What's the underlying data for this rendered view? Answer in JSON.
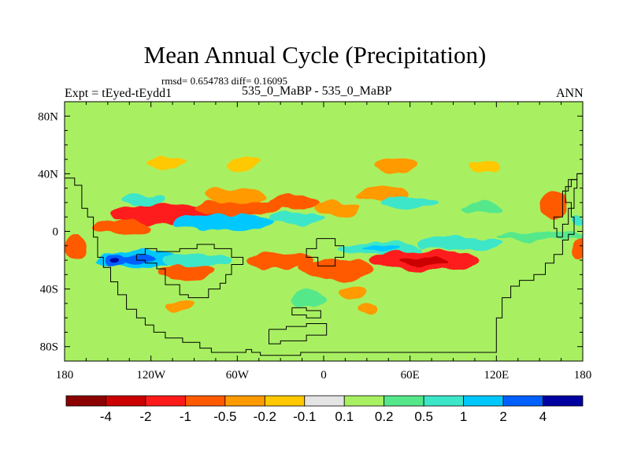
{
  "chart_data": {
    "type": "heatmap",
    "title": "Mean Annual Cycle (Precipitation)",
    "subtitle": "rmsd= 0.654783 diff= 0.16095",
    "left_label": "Expt = tEyed-tEydd1",
    "center_label": "535_0_MaBP - 535_0_MaBP",
    "right_label": "ANN",
    "x_range": [
      -180,
      180
    ],
    "y_range": [
      -90,
      90
    ],
    "x_ticks": [
      {
        "value": -180,
        "label": "180"
      },
      {
        "value": -120,
        "label": "120W"
      },
      {
        "value": -60,
        "label": "60W"
      },
      {
        "value": 0,
        "label": "0"
      },
      {
        "value": 60,
        "label": "60E"
      },
      {
        "value": 120,
        "label": "120E"
      },
      {
        "value": 180,
        "label": "180"
      }
    ],
    "y_ticks": [
      {
        "value": 80,
        "label": "80N"
      },
      {
        "value": 40,
        "label": "40N"
      },
      {
        "value": 0,
        "label": "0"
      },
      {
        "value": -40,
        "label": "40S"
      },
      {
        "value": -80,
        "label": "80S"
      }
    ],
    "colorbar": {
      "colors": [
        "#8b0000",
        "#cc0000",
        "#ff1a1a",
        "#ff5a00",
        "#ff9a00",
        "#ffc800",
        "#e4e4e4",
        "#a8f062",
        "#55e88a",
        "#3ce6c8",
        "#00c8ff",
        "#0060ff",
        "#0000a0"
      ],
      "labels": [
        "-4",
        "-2",
        "-1",
        "-0.5",
        "-0.2",
        "-0.1",
        "0.1",
        "0.2",
        "0.5",
        "1",
        "2",
        "4"
      ]
    },
    "field_features": [
      {
        "lon": -110,
        "lat": 12,
        "rx": 38,
        "ry": 7,
        "value": -1.2
      },
      {
        "lon": -140,
        "lat": 3,
        "rx": 20,
        "ry": 5,
        "value": -0.8
      },
      {
        "lon": -60,
        "lat": 16,
        "rx": 30,
        "ry": 6,
        "value": -0.6
      },
      {
        "lon": -20,
        "lat": 20,
        "rx": 18,
        "ry": 5,
        "value": -0.5
      },
      {
        "lon": 10,
        "lat": 16,
        "rx": 16,
        "ry": 5,
        "value": -0.3
      },
      {
        "lon": 40,
        "lat": 26,
        "rx": 18,
        "ry": 5,
        "value": -0.25
      },
      {
        "lon": -60,
        "lat": 25,
        "rx": 22,
        "ry": 6,
        "value": -0.2
      },
      {
        "lon": -110,
        "lat": 48,
        "rx": 14,
        "ry": 4,
        "value": -0.15
      },
      {
        "lon": -55,
        "lat": 47,
        "rx": 12,
        "ry": 5,
        "value": -0.15
      },
      {
        "lon": 50,
        "lat": 46,
        "rx": 14,
        "ry": 5,
        "value": -0.2
      },
      {
        "lon": 112,
        "lat": 45,
        "rx": 10,
        "ry": 5,
        "value": -0.15
      },
      {
        "lon": 160,
        "lat": 18,
        "rx": 10,
        "ry": 10,
        "value": -0.5
      },
      {
        "lon": -70,
        "lat": 6,
        "rx": 34,
        "ry": 5,
        "value": 1.2
      },
      {
        "lon": -125,
        "lat": 22,
        "rx": 14,
        "ry": 4,
        "value": 0.8
      },
      {
        "lon": -20,
        "lat": 9,
        "rx": 20,
        "ry": 4,
        "value": 0.7
      },
      {
        "lon": 60,
        "lat": 20,
        "rx": 20,
        "ry": 4,
        "value": 0.6
      },
      {
        "lon": 110,
        "lat": 16,
        "rx": 14,
        "ry": 4,
        "value": 0.5
      },
      {
        "lon": -130,
        "lat": -19,
        "rx": 30,
        "ry": 6,
        "value": 1.3
      },
      {
        "lon": -145,
        "lat": -20,
        "rx": 8,
        "ry": 5,
        "value": 3.5
      },
      {
        "lon": -88,
        "lat": -20,
        "rx": 24,
        "ry": 5,
        "value": 0.8
      },
      {
        "lon": 40,
        "lat": -12,
        "rx": 30,
        "ry": 4,
        "value": 1.0
      },
      {
        "lon": 95,
        "lat": -8,
        "rx": 30,
        "ry": 5,
        "value": 0.7
      },
      {
        "lon": 150,
        "lat": -3,
        "rx": 30,
        "ry": 3,
        "value": 0.3
      },
      {
        "lon": 70,
        "lat": -20,
        "rx": 38,
        "ry": 7,
        "value": -1.4
      },
      {
        "lon": 10,
        "lat": -26,
        "rx": 26,
        "ry": 7,
        "value": -0.9
      },
      {
        "lon": -30,
        "lat": -20,
        "rx": 22,
        "ry": 6,
        "value": -0.9
      },
      {
        "lon": -95,
        "lat": -28,
        "rx": 20,
        "ry": 5,
        "value": -0.6
      },
      {
        "lon": -172,
        "lat": -11,
        "rx": 8,
        "ry": 8,
        "value": -0.5
      },
      {
        "lon": 178,
        "lat": -12,
        "rx": 6,
        "ry": 8,
        "value": -0.6
      },
      {
        "lon": 20,
        "lat": -42,
        "rx": 10,
        "ry": 5,
        "value": -0.3
      },
      {
        "lon": -10,
        "lat": -47,
        "rx": 12,
        "ry": 6,
        "value": 0.5
      },
      {
        "lon": -20,
        "lat": -60,
        "rx": 24,
        "ry": 9,
        "value": 0.2
      },
      {
        "lon": -140,
        "lat": -58,
        "rx": 30,
        "ry": 7,
        "value": 0.2
      },
      {
        "lon": 130,
        "lat": -55,
        "rx": 26,
        "ry": 6,
        "value": 0.2
      },
      {
        "lon": -100,
        "lat": -52,
        "rx": 10,
        "ry": 4,
        "value": -0.2
      },
      {
        "lon": 30,
        "lat": -53,
        "rx": 7,
        "ry": 3,
        "value": -0.2
      },
      {
        "lon": 176,
        "lat": 6,
        "rx": 4,
        "ry": 3,
        "value": 0.8
      }
    ],
    "land_outlines": [
      {
        "name": "americas",
        "points": [
          [
            -180,
            37
          ],
          [
            -173,
            37
          ],
          [
            -173,
            32
          ],
          [
            -168,
            32
          ],
          [
            -168,
            16
          ],
          [
            -164,
            16
          ],
          [
            -164,
            10
          ],
          [
            -160,
            10
          ],
          [
            -160,
            -4
          ],
          [
            -157,
            -4
          ],
          [
            -157,
            -18
          ],
          [
            -153,
            -18
          ],
          [
            -153,
            -25
          ],
          [
            -148,
            -25
          ],
          [
            -148,
            -35
          ],
          [
            -143,
            -35
          ],
          [
            -143,
            -44
          ],
          [
            -137,
            -44
          ],
          [
            -137,
            -54
          ],
          [
            -130,
            -54
          ],
          [
            -130,
            -60
          ],
          [
            -124,
            -60
          ],
          [
            -124,
            -65
          ],
          [
            -118,
            -65
          ],
          [
            -118,
            -70
          ],
          [
            -110,
            -70
          ],
          [
            -110,
            -74
          ],
          [
            -98,
            -74
          ],
          [
            -98,
            -77
          ],
          [
            -86,
            -77
          ],
          [
            -86,
            -81
          ],
          [
            -78,
            -81
          ],
          [
            -78,
            -84
          ],
          [
            -54,
            -84
          ],
          [
            -54,
            -82
          ],
          [
            -50,
            -82
          ],
          [
            -50,
            -84
          ],
          [
            -44,
            -84
          ],
          [
            -44,
            -86
          ],
          [
            -16,
            -86
          ],
          [
            -16,
            -84
          ],
          [
            120,
            -84
          ],
          [
            120,
            -60
          ],
          [
            124,
            -60
          ],
          [
            124,
            -46
          ],
          [
            130,
            -46
          ],
          [
            130,
            -38
          ],
          [
            136,
            -38
          ],
          [
            136,
            -34
          ],
          [
            146,
            -34
          ],
          [
            146,
            -30
          ],
          [
            154,
            -30
          ],
          [
            154,
            -22
          ],
          [
            160,
            -22
          ],
          [
            160,
            -16
          ],
          [
            166,
            -16
          ],
          [
            166,
            -6
          ],
          [
            170,
            -6
          ],
          [
            170,
            -2
          ],
          [
            174,
            -2
          ],
          [
            174,
            10
          ],
          [
            172,
            10
          ],
          [
            172,
            20
          ],
          [
            168,
            20
          ],
          [
            168,
            31
          ],
          [
            172,
            31
          ],
          [
            172,
            36
          ],
          [
            176,
            36
          ],
          [
            176,
            40
          ],
          [
            180,
            40
          ]
        ]
      },
      {
        "name": "southern-continent",
        "points": [
          [
            -130,
            -16
          ],
          [
            -124,
            -16
          ],
          [
            -124,
            -12
          ],
          [
            -116,
            -12
          ],
          [
            -116,
            -14
          ],
          [
            -100,
            -14
          ],
          [
            -100,
            -12
          ],
          [
            -88,
            -12
          ],
          [
            -88,
            -9
          ],
          [
            -76,
            -9
          ],
          [
            -76,
            -12
          ],
          [
            -64,
            -12
          ],
          [
            -64,
            -18
          ],
          [
            -56,
            -18
          ],
          [
            -56,
            -23
          ],
          [
            -64,
            -23
          ],
          [
            -64,
            -30
          ],
          [
            -68,
            -30
          ],
          [
            -68,
            -36
          ],
          [
            -72,
            -36
          ],
          [
            -72,
            -40
          ],
          [
            -80,
            -40
          ],
          [
            -80,
            -46
          ],
          [
            -94,
            -46
          ],
          [
            -94,
            -44
          ],
          [
            -100,
            -44
          ],
          [
            -100,
            -37
          ],
          [
            -110,
            -37
          ],
          [
            -110,
            -26
          ],
          [
            -116,
            -26
          ],
          [
            -116,
            -22
          ],
          [
            -124,
            -22
          ],
          [
            -124,
            -20
          ],
          [
            -130,
            -20
          ],
          [
            -130,
            -16
          ]
        ]
      },
      {
        "name": "island-group-a",
        "points": [
          [
            -5,
            -5
          ],
          [
            8,
            -5
          ],
          [
            8,
            -10
          ],
          [
            14,
            -10
          ],
          [
            14,
            -18
          ],
          [
            8,
            -18
          ],
          [
            8,
            -24
          ],
          [
            -4,
            -24
          ],
          [
            -4,
            -18
          ],
          [
            -12,
            -18
          ],
          [
            -12,
            -12
          ],
          [
            -5,
            -12
          ],
          [
            -5,
            -5
          ]
        ]
      },
      {
        "name": "island-group-b",
        "points": [
          [
            -38,
            -68
          ],
          [
            -26,
            -68
          ],
          [
            -26,
            -66
          ],
          [
            -12,
            -66
          ],
          [
            -12,
            -64
          ],
          [
            2,
            -64
          ],
          [
            2,
            -72
          ],
          [
            -12,
            -72
          ],
          [
            -12,
            -76
          ],
          [
            -30,
            -76
          ],
          [
            -30,
            -78
          ],
          [
            -38,
            -78
          ],
          [
            -38,
            -68
          ]
        ]
      },
      {
        "name": "island-group-c",
        "points": [
          [
            -22,
            -53
          ],
          [
            -12,
            -53
          ],
          [
            -12,
            -55
          ],
          [
            -2,
            -55
          ],
          [
            -2,
            -60
          ],
          [
            -12,
            -60
          ],
          [
            -12,
            -58
          ],
          [
            -22,
            -58
          ],
          [
            -22,
            -53
          ]
        ]
      },
      {
        "name": "eastern-peninsula",
        "points": [
          [
            166,
            -4
          ],
          [
            166,
            5
          ],
          [
            170,
            5
          ],
          [
            170,
            16
          ],
          [
            174,
            16
          ],
          [
            174,
            30
          ],
          [
            176,
            30
          ],
          [
            176,
            36
          ],
          [
            170,
            36
          ],
          [
            170,
            28
          ],
          [
            166,
            28
          ],
          [
            166,
            10
          ],
          [
            160,
            10
          ],
          [
            160,
            2
          ],
          [
            162,
            2
          ],
          [
            162,
            -4
          ],
          [
            166,
            -4
          ]
        ]
      }
    ]
  }
}
